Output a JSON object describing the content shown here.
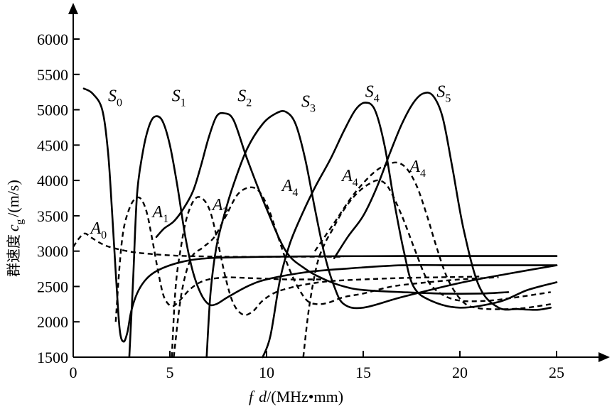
{
  "chart_data": {
    "type": "line",
    "xlabel_parts": [
      "f",
      "d",
      "/(MHz•mm)"
    ],
    "ylabel_parts": [
      "群速度",
      "c",
      "g",
      "/(m/s)"
    ],
    "xlim": [
      0,
      25
    ],
    "ylim": [
      1500,
      6000
    ],
    "x_ticks": [
      "0",
      "5",
      "10",
      "15",
      "20",
      "25"
    ],
    "y_ticks": [
      "1500",
      "2000",
      "2500",
      "3000",
      "3500",
      "4000",
      "4500",
      "5000",
      "5500",
      "6000"
    ],
    "grid": false,
    "series": [
      {
        "label": "S",
        "sub": "0",
        "style": "solid",
        "label_at": [
          1.8,
          5120
        ],
        "x": [
          0.55,
          1.0,
          1.5,
          1.8,
          2.0,
          2.2,
          2.4,
          2.6,
          2.8,
          3.0,
          3.3,
          3.7,
          4.2,
          5.0,
          6.0,
          7.0,
          8.0,
          10.0,
          12.0,
          14.0,
          17.0,
          20.0,
          22.0,
          25.0
        ],
        "y": [
          5300,
          5230,
          5000,
          4400,
          3600,
          2700,
          1900,
          1720,
          1850,
          2150,
          2400,
          2580,
          2700,
          2800,
          2870,
          2900,
          2910,
          2920,
          2925,
          2928,
          2930,
          2930,
          2930,
          2930
        ]
      },
      {
        "label": "S",
        "sub": "1",
        "style": "solid",
        "label_at": [
          5.1,
          5120
        ],
        "x": [
          4.3,
          4.7,
          5.2,
          5.7,
          6.2,
          6.6,
          7.0,
          7.4,
          7.8,
          8.3,
          9.0,
          10.0,
          11.0,
          12.0,
          13.0,
          14.0,
          15.0,
          17.0,
          19.0,
          21.0,
          22.5
        ],
        "y": [
          3200,
          3320,
          3420,
          3600,
          3850,
          4200,
          4600,
          4900,
          4950,
          4850,
          4300,
          3600,
          3000,
          2750,
          2600,
          2500,
          2450,
          2420,
          2400,
          2400,
          2420
        ]
      },
      {
        "label": "S",
        "sub": "2",
        "style": "solid",
        "label_at": [
          8.5,
          5120
        ],
        "x": [
          2.9,
          3.1,
          3.3,
          3.6,
          3.9,
          4.2,
          4.6,
          5.0,
          5.4,
          5.8,
          6.2,
          6.6,
          7.0,
          7.4,
          8.0,
          9.0,
          10.0,
          12.0,
          14.0,
          17.0,
          20.0,
          23.0,
          25.0
        ],
        "y": [
          1500,
          2600,
          3800,
          4400,
          4750,
          4900,
          4850,
          4500,
          3900,
          3200,
          2700,
          2400,
          2250,
          2250,
          2350,
          2500,
          2600,
          2700,
          2750,
          2800,
          2800,
          2800,
          2800
        ]
      },
      {
        "label": "S",
        "sub": "3",
        "style": "solid",
        "label_at": [
          11.8,
          5040
        ],
        "x": [
          6.9,
          7.1,
          7.4,
          7.8,
          8.3,
          9.0,
          9.8,
          10.5,
          11.0,
          11.5,
          12.0,
          12.5,
          13.0,
          13.5,
          14.0,
          15.0,
          17.0,
          20.0,
          22.5,
          25.0
        ],
        "y": [
          1500,
          2400,
          3050,
          3500,
          3950,
          4450,
          4800,
          4950,
          4970,
          4800,
          4300,
          3600,
          2950,
          2500,
          2250,
          2200,
          2350,
          2550,
          2680,
          2800
        ]
      },
      {
        "label": "S",
        "sub": "4",
        "style": "solid",
        "label_at": [
          15.1,
          5180
        ],
        "x": [
          9.8,
          10.2,
          10.7,
          11.2,
          11.8,
          12.5,
          13.3,
          14.0,
          14.6,
          15.1,
          15.6,
          16.1,
          16.6,
          17.1,
          17.6,
          18.5,
          20.0,
          22.0,
          23.5,
          25.0
        ],
        "y": [
          1500,
          1800,
          2600,
          3100,
          3500,
          3900,
          4300,
          4700,
          5000,
          5100,
          5000,
          4500,
          3700,
          3000,
          2500,
          2300,
          2200,
          2280,
          2450,
          2560
        ]
      },
      {
        "label": "S",
        "sub": "5",
        "style": "solid",
        "label_at": [
          18.8,
          5180
        ],
        "x": [
          13.5,
          14.2,
          15.0,
          15.7,
          16.4,
          17.0,
          17.6,
          18.1,
          18.6,
          19.1,
          19.6,
          20.2,
          21.0,
          22.0,
          23.0,
          24.0,
          24.7
        ],
        "y": [
          2900,
          3200,
          3500,
          3900,
          4400,
          4800,
          5100,
          5230,
          5200,
          4900,
          4200,
          3300,
          2500,
          2200,
          2180,
          2170,
          2200
        ]
      },
      {
        "label": "A",
        "sub": "0",
        "style": "dashed",
        "label_at": [
          0.9,
          3250
        ],
        "x": [
          0.0,
          0.3,
          0.6,
          1.0,
          1.5,
          2.0,
          3.0,
          4.0,
          5.0,
          6.0,
          8.0,
          10.0,
          12.0,
          14.0
        ],
        "y": [
          3060,
          3180,
          3250,
          3180,
          3100,
          3050,
          2990,
          2960,
          2940,
          2930,
          2920,
          2920,
          2920,
          2920
        ]
      },
      {
        "label": "A",
        "sub": "1",
        "style": "dashed",
        "label_at": [
          4.1,
          3480
        ],
        "x": [
          2.2,
          2.4,
          2.6,
          2.9,
          3.2,
          3.5,
          3.8,
          4.1,
          4.4,
          4.7,
          5.1,
          5.5,
          6.0,
          6.5,
          7.0,
          7.5,
          8.0,
          9.0,
          10.0,
          11.0,
          12.0,
          13.0
        ],
        "y": [
          2000,
          2800,
          3300,
          3600,
          3740,
          3740,
          3550,
          3150,
          2700,
          2350,
          2220,
          2300,
          2450,
          2550,
          2600,
          2620,
          2630,
          2620,
          2610,
          2600,
          2600,
          2600
        ]
      },
      {
        "label": "A",
        "sub": "2",
        "style": "dashed",
        "label_at": [
          7.2,
          3580
        ],
        "x": [
          5.1,
          5.3,
          5.6,
          5.9,
          6.3,
          6.7,
          7.1,
          7.5,
          7.9,
          8.3,
          8.8,
          9.3,
          9.8,
          10.5,
          11.5,
          12.5,
          13.5,
          15.0,
          17.0,
          19.0,
          21.0
        ],
        "y": [
          1500,
          2500,
          3100,
          3500,
          3740,
          3740,
          3550,
          3100,
          2600,
          2250,
          2100,
          2150,
          2300,
          2420,
          2500,
          2550,
          2580,
          2600,
          2620,
          2630,
          2640
        ]
      },
      {
        "label": "A",
        "sub": "4",
        "style": "dashed",
        "label_at": [
          10.8,
          3850
        ],
        "x": [
          5.2,
          5.6,
          6.1,
          6.7,
          7.3,
          7.9,
          8.5,
          9.1,
          9.6,
          10.1,
          10.6,
          11.1,
          11.6,
          12.1,
          12.6,
          13.2,
          14.0,
          15.0,
          16.5,
          18.0,
          20.0,
          22.0
        ],
        "y": [
          1500,
          2400,
          2900,
          3050,
          3200,
          3500,
          3800,
          3900,
          3850,
          3600,
          3200,
          2800,
          2500,
          2300,
          2250,
          2270,
          2350,
          2400,
          2500,
          2550,
          2600,
          2630
        ]
      },
      {
        "label": "A",
        "sub": "4",
        "style": "dashed",
        "label_at": [
          13.9,
          3990
        ],
        "x": [
          11.9,
          12.2,
          12.6,
          13.0,
          13.4,
          13.8,
          14.3,
          14.8,
          15.3,
          15.8,
          16.3,
          17.0,
          17.7,
          18.3,
          19.0,
          20.0,
          21.5,
          23.0,
          24.7
        ],
        "y": [
          1500,
          2200,
          2800,
          3100,
          3300,
          3500,
          3700,
          3850,
          3950,
          4000,
          3900,
          3500,
          3000,
          2600,
          2400,
          2300,
          2300,
          2350,
          2420
        ]
      },
      {
        "label": "A",
        "sub": "4",
        "style": "dashed",
        "label_at": [
          17.4,
          4120
        ],
        "x": [
          12.5,
          13.5,
          14.5,
          15.5,
          16.2,
          16.8,
          17.3,
          17.8,
          18.3,
          18.8,
          19.3,
          19.8,
          20.3,
          20.8,
          21.5,
          22.5,
          23.5,
          24.7
        ],
        "y": [
          3000,
          3400,
          3800,
          4100,
          4220,
          4250,
          4150,
          3900,
          3500,
          3050,
          2650,
          2400,
          2250,
          2200,
          2180,
          2180,
          2200,
          2250
        ]
      }
    ]
  }
}
